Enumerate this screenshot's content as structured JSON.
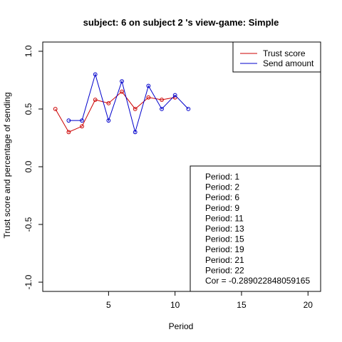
{
  "chart_data": {
    "type": "line",
    "title": "subject:  6  on subject  2 's view-game:  Simple",
    "xlabel": "Period",
    "ylabel": "Trust score and percentage of sending",
    "xlim": [
      0.05,
      20.95
    ],
    "ylim": [
      -1.08,
      1.08
    ],
    "xticks": [
      5,
      10,
      15,
      20
    ],
    "yticks": [
      -1.0,
      -0.5,
      0.0,
      0.5,
      1.0
    ],
    "ytick_labels": [
      "-1.0",
      "-0.5",
      "0.0",
      "0.5",
      "1.0"
    ],
    "grid": false,
    "legend_position": "top-right",
    "series": [
      {
        "name": "Trust score",
        "color": "#cc0000",
        "x": [
          1,
          2,
          3,
          4,
          5,
          6,
          7,
          8,
          9,
          10
        ],
        "y": [
          0.5,
          0.3,
          0.35,
          0.58,
          0.55,
          0.65,
          0.5,
          0.6,
          0.58,
          0.6
        ]
      },
      {
        "name": "Send amount",
        "color": "#0000cc",
        "x": [
          2,
          3,
          4,
          5,
          6,
          7,
          8,
          9,
          10,
          11
        ],
        "y": [
          0.4,
          0.4,
          0.8,
          0.4,
          0.74,
          0.3,
          0.7,
          0.5,
          0.62,
          0.5
        ]
      }
    ],
    "info_box": {
      "lines": [
        "Period:  1",
        "Period:  2",
        "Period:  6",
        "Period:  9",
        "Period:  11",
        "Period:  13",
        "Period:  15",
        "Period:  19",
        "Period:  21",
        "Period:  22",
        "Cor =  -0.289022848059165"
      ]
    }
  }
}
